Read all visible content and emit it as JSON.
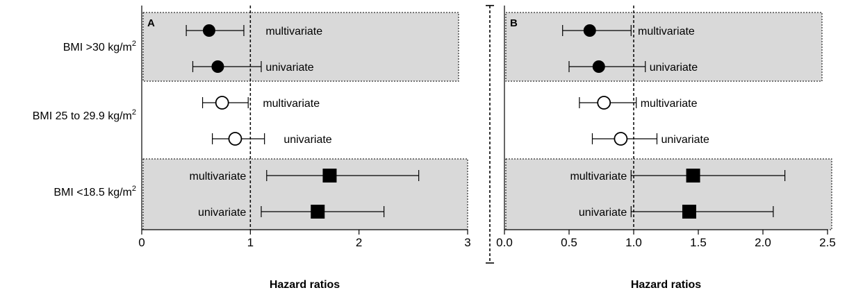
{
  "chart_data": [
    {
      "type": "forest",
      "panel_label": "A",
      "xlabel": "Hazard ratios",
      "xlim": [
        0,
        3
      ],
      "xticks": [
        0,
        1,
        2,
        3
      ],
      "xtick_labels": [
        "0",
        "1",
        "2",
        "3"
      ],
      "reference_line": 1,
      "groups": [
        "BMI >30  kg/m",
        "BMI 25 to 29.9 kg/m",
        "BMI <18.5 kg/m"
      ],
      "group_superscript": "2",
      "points": [
        {
          "group": "BMI >30  kg/m",
          "label": "multivariate",
          "estimate": 0.62,
          "ci_low": 0.41,
          "ci_high": 0.94,
          "marker": "filled-circle",
          "label_side": "right"
        },
        {
          "group": "BMI >30  kg/m",
          "label": "univariate",
          "estimate": 0.7,
          "ci_low": 0.47,
          "ci_high": 1.1,
          "marker": "filled-circle",
          "label_side": "right"
        },
        {
          "group": "BMI 25 to 29.9 kg/m",
          "label": "multivariate",
          "estimate": 0.74,
          "ci_low": 0.56,
          "ci_high": 0.98,
          "marker": "open-circle",
          "label_side": "right"
        },
        {
          "group": "BMI 25 to 29.9 kg/m",
          "label": "univariate",
          "estimate": 0.86,
          "ci_low": 0.65,
          "ci_high": 1.13,
          "marker": "open-circle",
          "label_side": "right"
        },
        {
          "group": "BMI <18.5 kg/m",
          "label": "multivariate",
          "estimate": 1.73,
          "ci_low": 1.15,
          "ci_high": 2.55,
          "marker": "filled-square",
          "label_side": "left"
        },
        {
          "group": "BMI <18.5 kg/m",
          "label": "univariate",
          "estimate": 1.62,
          "ci_low": 1.1,
          "ci_high": 2.23,
          "marker": "filled-square",
          "label_side": "left"
        }
      ],
      "shaded_groups": [
        "BMI >30  kg/m",
        "BMI <18.5 kg/m"
      ]
    },
    {
      "type": "forest",
      "panel_label": "B",
      "xlabel": "Hazard ratios",
      "xlim": [
        0,
        2.5
      ],
      "xticks": [
        0,
        0.5,
        1.0,
        1.5,
        2.0,
        2.5
      ],
      "xtick_labels": [
        "0.0",
        "0.5",
        "1.0",
        "1.5",
        "2.0",
        "2.5"
      ],
      "reference_line": 1.0,
      "points": [
        {
          "group": "BMI >30  kg/m",
          "label": "multivariate",
          "estimate": 0.66,
          "ci_low": 0.45,
          "ci_high": 0.98,
          "marker": "filled-circle",
          "label_side": "right"
        },
        {
          "group": "BMI >30  kg/m",
          "label": "univariate",
          "estimate": 0.73,
          "ci_low": 0.5,
          "ci_high": 1.09,
          "marker": "filled-circle",
          "label_side": "right"
        },
        {
          "group": "BMI 25 to 29.9 kg/m",
          "label": "multivariate",
          "estimate": 0.77,
          "ci_low": 0.58,
          "ci_high": 1.02,
          "marker": "open-circle",
          "label_side": "right"
        },
        {
          "group": "BMI 25 to 29.9 kg/m",
          "label": "univariate",
          "estimate": 0.9,
          "ci_low": 0.68,
          "ci_high": 1.18,
          "marker": "open-circle",
          "label_side": "right"
        },
        {
          "group": "BMI <18.5 kg/m",
          "label": "multivariate",
          "estimate": 1.46,
          "ci_low": 0.98,
          "ci_high": 2.17,
          "marker": "filled-square",
          "label_side": "left"
        },
        {
          "group": "BMI <18.5 kg/m",
          "label": "univariate",
          "estimate": 1.43,
          "ci_low": 0.98,
          "ci_high": 2.08,
          "marker": "filled-square",
          "label_side": "left"
        }
      ],
      "shaded_groups": [
        "BMI >30  kg/m",
        "BMI <18.5 kg/m"
      ]
    }
  ],
  "colors": {
    "shade": "#d9d9d9",
    "ink": "#000000",
    "background": "#ffffff"
  }
}
